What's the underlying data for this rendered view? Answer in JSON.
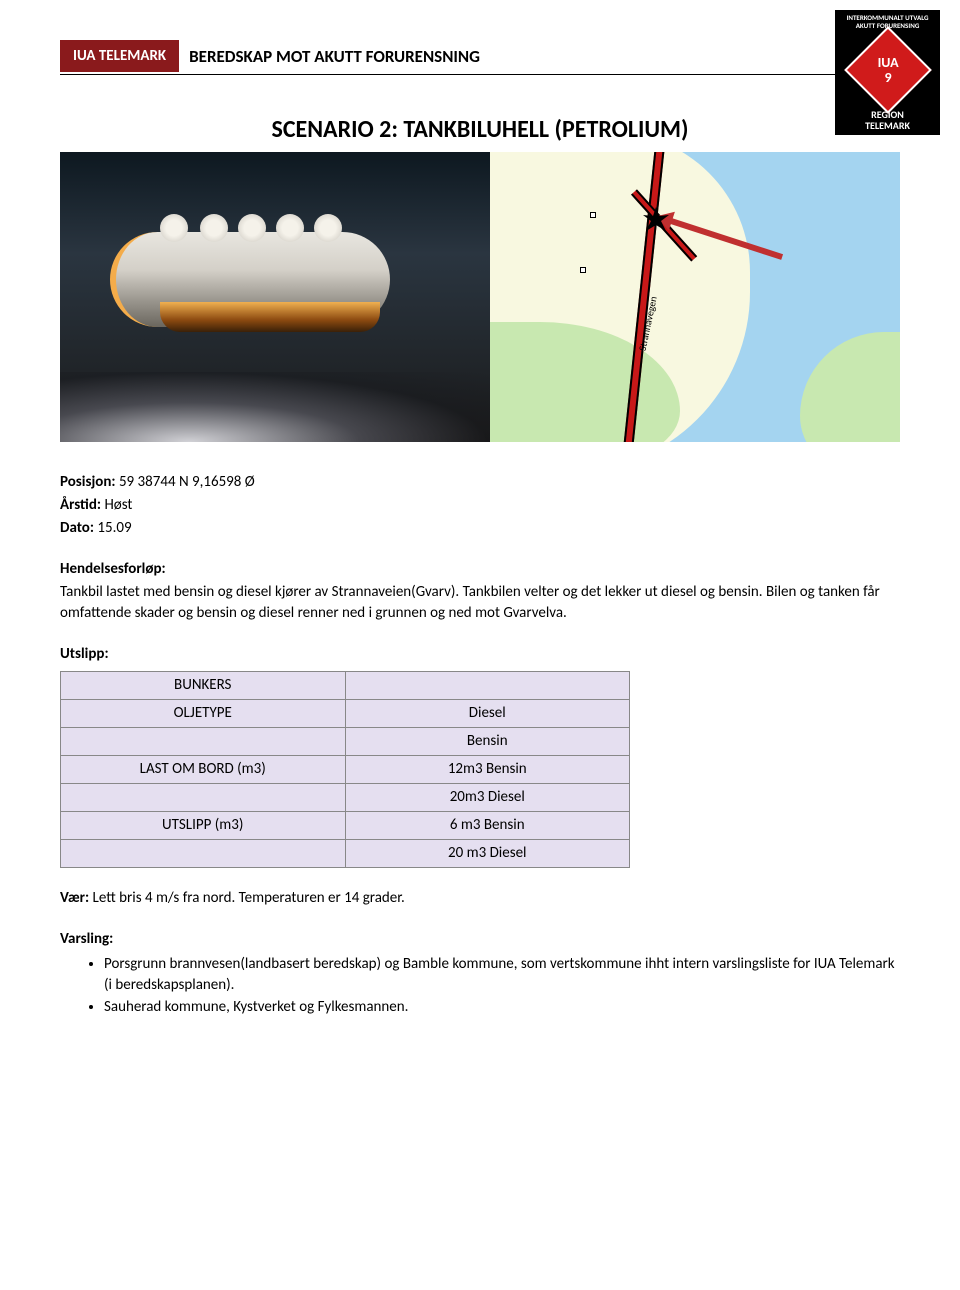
{
  "header": {
    "badge": "IUA TELEMARK",
    "title": "BEREDSKAP MOT AKUTT FORURENSNING"
  },
  "logo": {
    "top_line1": "INTERKOMMUNALT UTVALG",
    "top_line2": "AKUTT FORURENSING",
    "diamond_top": "IUA",
    "diamond_num": "9",
    "bottom_line1": "REGION",
    "bottom_line2": "TELEMARK"
  },
  "scenario_title": "SCENARIO 2: TANKBILUHELL (PETROLIUM)",
  "map": {
    "road_label": "Strannavegen"
  },
  "position": {
    "label": "Posisjon:",
    "value": "59 38744 N 9,16598 Ø"
  },
  "season": {
    "label": "Årstid:",
    "value": "Høst"
  },
  "date": {
    "label": "Dato:",
    "value": "15.09"
  },
  "hendelse": {
    "label": "Hendelsesforløp:",
    "text": "Tankbil lastet med bensin og diesel kjører av Strannaveien(Gvarv). Tankbilen velter og det lekker ut diesel og bensin. Bilen og tanken får omfattende skader og bensin og diesel renner ned i grunnen og ned mot Gvarvelva."
  },
  "utslipp": {
    "label": "Utslipp:",
    "table": {
      "rows": [
        [
          "BUNKERS",
          ""
        ],
        [
          "OLJETYPE",
          "Diesel"
        ],
        [
          "",
          "Bensin"
        ],
        [
          "LAST OM BORD (m3)",
          "12m3 Bensin"
        ],
        [
          "",
          "20m3 Diesel"
        ],
        [
          "UTSLIPP (m3)",
          "6 m3 Bensin"
        ],
        [
          "",
          "20 m3 Diesel"
        ]
      ],
      "bg_color": "#e5dff0",
      "border_color": "#888888"
    }
  },
  "weather": {
    "label": "Vær:",
    "value": "Lett bris 4 m/s fra nord. Temperaturen er 14 grader."
  },
  "varsling": {
    "label": "Varsling:",
    "bullets": [
      "Porsgrunn brannvesen(landbasert beredskap) og Bamble kommune, som vertskommune ihht intern varslingsliste for IUA Telemark (i beredskapsplanen).",
      "Sauherad kommune, Kystverket og Fylkesmannen."
    ]
  }
}
